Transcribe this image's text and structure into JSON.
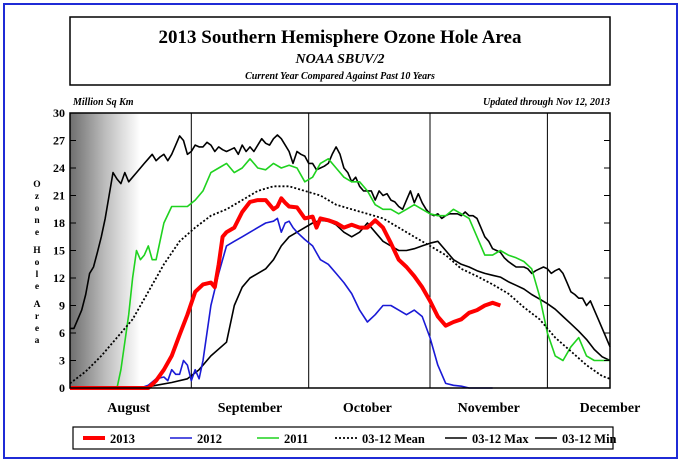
{
  "chart_data": {
    "type": "line",
    "title": "2013 Southern Hemisphere Ozone Hole Area",
    "subtitle": "NOAA SBUV/2",
    "subtitle2": "Current Year Compared Against Past 10 Years",
    "units_label": "Million Sq Km",
    "updated_label": "Updated through Nov 12, 2013",
    "ylabel": "Ozone Hole Area",
    "ylim": [
      0,
      30
    ],
    "y_ticks": [
      0,
      3,
      6,
      9,
      12,
      15,
      18,
      21,
      24,
      27,
      30
    ],
    "month_labels": [
      {
        "label": "August",
        "day": 15
      },
      {
        "label": "September",
        "day": 46
      },
      {
        "label": "October",
        "day": 76
      },
      {
        "label": "November",
        "day": 107
      },
      {
        "label": "December",
        "day": 138
      }
    ],
    "month_boundaries": [
      31,
      61,
      92,
      122
    ],
    "x_range": [
      0,
      138
    ],
    "series": [
      {
        "name": "03-12 Min",
        "color": "#000000",
        "dash": "solid",
        "x": [
          0,
          2,
          4,
          6,
          8,
          10,
          14,
          18,
          22,
          26,
          30,
          33,
          36,
          40,
          42,
          44,
          46,
          50,
          52,
          54,
          56,
          58,
          60,
          62,
          64,
          66,
          68,
          70,
          72,
          74,
          76,
          78,
          80,
          82,
          84,
          86,
          88,
          90,
          92,
          94,
          96,
          98,
          100,
          102,
          104,
          106,
          108,
          110,
          112,
          114,
          116,
          118,
          120,
          122,
          124,
          126,
          128,
          130,
          132,
          134,
          136,
          138
        ],
        "y": [
          0,
          0,
          0,
          0,
          0,
          0,
          0,
          0,
          0.3,
          0.6,
          1,
          2,
          3.5,
          5,
          9,
          11,
          12,
          13,
          14,
          15.5,
          16.5,
          17,
          17.5,
          18,
          18.3,
          18.2,
          17.8,
          17,
          16.5,
          17,
          18,
          17,
          16,
          15.5,
          15,
          15,
          15.2,
          15.5,
          15.8,
          16,
          15,
          14,
          13.5,
          13.2,
          12.8,
          12.5,
          12.3,
          12.1,
          11.6,
          11.2,
          10.8,
          10.2,
          9.7,
          9.2,
          8.6,
          7.8,
          7,
          6.2,
          5.3,
          4.2,
          3.4,
          3
        ]
      },
      {
        "name": "03-12 Max",
        "color": "#000000",
        "dash": "solid",
        "x": [
          0,
          1,
          2,
          3,
          4,
          5,
          6,
          7,
          8,
          9,
          10,
          11,
          12,
          13,
          14,
          15,
          16,
          17,
          18,
          19,
          20,
          21,
          22,
          23,
          24,
          25,
          26,
          27,
          28,
          29,
          30,
          31,
          32,
          33,
          34,
          35,
          36,
          37,
          38,
          39,
          40,
          41,
          42,
          43,
          44,
          45,
          46,
          47,
          48,
          49,
          50,
          51,
          52,
          53,
          54,
          55,
          56,
          57,
          58,
          59,
          60,
          61,
          62,
          63,
          64,
          65,
          66,
          67,
          68,
          69,
          70,
          71,
          72,
          73,
          74,
          75,
          76,
          77,
          78,
          79,
          80,
          81,
          82,
          83,
          84,
          85,
          86,
          87,
          88,
          89,
          90,
          91,
          92,
          93,
          94,
          95,
          96,
          97,
          98,
          99,
          100,
          101,
          102,
          103,
          104,
          105,
          106,
          107,
          108,
          109,
          110,
          111,
          112,
          113,
          114,
          115,
          116,
          117,
          118,
          119,
          120,
          121,
          122,
          123,
          124,
          125,
          126,
          127,
          128,
          129,
          130,
          131,
          132,
          133,
          134,
          135,
          136,
          137,
          138
        ],
        "y": [
          6.5,
          6.5,
          7.5,
          8.5,
          10.2,
          12.5,
          13.2,
          14.8,
          16.5,
          18.5,
          21,
          23.5,
          22.8,
          22.3,
          23.5,
          22.5,
          23,
          23.5,
          24,
          24.5,
          25,
          25.5,
          24.8,
          25.2,
          25.5,
          24.8,
          25.5,
          26.5,
          27.5,
          27,
          25.5,
          25.8,
          26.5,
          26.3,
          26.3,
          26.8,
          26.5,
          25.8,
          26.3,
          26,
          25.8,
          26,
          26.2,
          25.5,
          26.5,
          25.8,
          26.3,
          25.8,
          26.5,
          27.2,
          26.7,
          26.5,
          27.2,
          27.6,
          27.2,
          26.5,
          25.8,
          24.5,
          25.8,
          25.5,
          25.3,
          24.5,
          24.5,
          23.8,
          24,
          24.2,
          24.5,
          25.5,
          26.3,
          25.5,
          24,
          23.5,
          22.5,
          23,
          22,
          21.5,
          21.5,
          21.5,
          20.5,
          21.5,
          21,
          21.2,
          20.5,
          20.3,
          19.8,
          19.5,
          20.5,
          21.5,
          20.2,
          21.2,
          20.2,
          19.5,
          19,
          18.8,
          19,
          18.5,
          18.8,
          19,
          19,
          19,
          18.8,
          19.2,
          18.8,
          18.8,
          18.5,
          17.5,
          16.5,
          16,
          15.2,
          15,
          14.8,
          14.2,
          13.8,
          13.5,
          13.2,
          13.2,
          13.2,
          13,
          12.5,
          12.8,
          13,
          13.2,
          13,
          12.5,
          12.8,
          13,
          12.5,
          11.5,
          10.5,
          10.2,
          9.8,
          9.8,
          9,
          9.5,
          8.5,
          7.5,
          6.5,
          5.5,
          4.5
        ]
      },
      {
        "name": "2011",
        "color": "#1fd21f",
        "dash": "solid",
        "x": [
          0,
          4,
          8,
          10,
          12,
          13,
          14,
          15,
          16,
          17,
          18,
          19,
          20,
          21,
          22,
          23,
          24,
          26,
          28,
          30,
          32,
          34,
          36,
          38,
          40,
          42,
          44,
          46,
          48,
          50,
          52,
          54,
          56,
          58,
          60,
          62,
          64,
          66,
          68,
          70,
          72,
          74,
          76,
          78,
          80,
          82,
          84,
          86,
          88,
          90,
          92,
          94,
          96,
          98,
          100,
          102,
          104,
          106,
          108,
          110,
          112,
          114,
          116,
          118,
          120,
          122,
          124,
          126,
          128,
          130,
          132,
          134,
          136,
          138
        ],
        "y": [
          0,
          0,
          0,
          0,
          0,
          2,
          5,
          8,
          12,
          15,
          14,
          14.5,
          15.5,
          14,
          14,
          16,
          18,
          19.8,
          19.8,
          19.8,
          20.5,
          21.5,
          23.5,
          24,
          24.5,
          23.5,
          24,
          25,
          24,
          23.8,
          24.5,
          24,
          24.3,
          24,
          22.5,
          23,
          24.5,
          25,
          24,
          23,
          22.5,
          22.5,
          21.5,
          20,
          19.5,
          19.5,
          19,
          19.5,
          20,
          19.5,
          19,
          18.8,
          18.8,
          19.5,
          19,
          18.5,
          16.5,
          14.5,
          14.5,
          15,
          14.5,
          14.2,
          13.8,
          13,
          10,
          6,
          3.5,
          3,
          4.5,
          5.5,
          3.5,
          3,
          3,
          3
        ]
      },
      {
        "name": "2012",
        "color": "#1a1ad6",
        "dash": "solid",
        "x": [
          0,
          18,
          20,
          22,
          24,
          25,
          26,
          27,
          28,
          29,
          30,
          31,
          32,
          33,
          34,
          36,
          38,
          40,
          42,
          44,
          46,
          48,
          50,
          52,
          53,
          54,
          55,
          56,
          57,
          58,
          60,
          62,
          64,
          66,
          68,
          70,
          72,
          74,
          76,
          78,
          80,
          82,
          84,
          86,
          88,
          90,
          92,
          94,
          96,
          98,
          100,
          102,
          104,
          106,
          108
        ],
        "y": [
          0,
          0,
          0.3,
          1,
          1.2,
          0.8,
          2,
          1.5,
          1.5,
          3,
          2.5,
          0.8,
          2,
          1,
          3,
          9,
          12.5,
          15.5,
          16,
          16.5,
          17,
          17.5,
          18,
          18.2,
          18.5,
          17,
          18,
          18.2,
          17.5,
          17,
          16.2,
          15.5,
          14,
          13.5,
          12.5,
          11.5,
          10.3,
          8.5,
          7.2,
          8,
          9,
          9,
          8.5,
          8,
          8.5,
          7.8,
          5.5,
          2.5,
          0.5,
          0.3,
          0.2,
          0,
          0,
          0,
          0
        ]
      },
      {
        "name": "2013",
        "color": "#ff0000",
        "dash": "solid",
        "x": [
          0,
          14,
          16,
          18,
          20,
          22,
          24,
          26,
          28,
          30,
          32,
          34,
          36,
          37,
          38,
          39,
          40,
          42,
          44,
          46,
          48,
          50,
          52,
          53,
          54,
          55,
          56,
          58,
          60,
          62,
          63,
          64,
          66,
          68,
          70,
          72,
          74,
          76,
          78,
          80,
          82,
          84,
          86,
          88,
          90,
          92,
          94,
          96,
          98,
          100,
          102,
          104,
          106,
          108,
          110
        ],
        "y": [
          0,
          0,
          0,
          0,
          0,
          0.8,
          2,
          3.5,
          5.8,
          8,
          10.5,
          11.3,
          11.5,
          11,
          13.5,
          16.5,
          17,
          17.5,
          19.2,
          20.3,
          20.5,
          20.5,
          19.5,
          19.8,
          20.7,
          20.2,
          19.8,
          19.7,
          18.5,
          18.7,
          17.5,
          18.5,
          18.3,
          18,
          17.5,
          17.8,
          17.5,
          17.5,
          18.3,
          17.5,
          15.8,
          14,
          13.2,
          12.2,
          11,
          9.5,
          7.8,
          6.8,
          7.2,
          7.5,
          8.2,
          8.5,
          9,
          9.3,
          9
        ]
      },
      {
        "name": "03-12 Mean",
        "color": "#000000",
        "dash": "dotted",
        "x": [
          0,
          4,
          8,
          12,
          16,
          20,
          24,
          28,
          32,
          36,
          40,
          44,
          48,
          52,
          56,
          60,
          64,
          68,
          72,
          76,
          80,
          84,
          88,
          92,
          96,
          100,
          104,
          108,
          112,
          116,
          120,
          124,
          128,
          132,
          136,
          138
        ],
        "y": [
          0.5,
          1.8,
          3.5,
          5.5,
          7.5,
          10.5,
          13.5,
          16,
          17.5,
          18.8,
          19.5,
          20.5,
          21.5,
          22,
          22,
          21.5,
          21,
          20,
          19.5,
          19,
          18.5,
          17.5,
          16.5,
          15.5,
          14.5,
          13,
          12.2,
          11.3,
          10.3,
          8.8,
          7.5,
          5.5,
          4,
          2.5,
          1.3,
          1
        ]
      }
    ],
    "legend": {
      "position": "bottom",
      "entries": [
        {
          "label": "2013",
          "color": "#ff0000",
          "dash": "solid",
          "bold": true
        },
        {
          "label": "2012",
          "color": "#1a1ad6",
          "dash": "solid"
        },
        {
          "label": "2011",
          "color": "#1fd21f",
          "dash": "solid"
        },
        {
          "label": "03-12 Mean",
          "color": "#000000",
          "dash": "dotted"
        },
        {
          "label": "03-12 Max",
          "color": "#000000",
          "dash": "solid"
        },
        {
          "label": "03-12 Min",
          "color": "#000000",
          "dash": "solid"
        }
      ]
    },
    "grid": false,
    "shading": "left gradient (polar night)"
  }
}
